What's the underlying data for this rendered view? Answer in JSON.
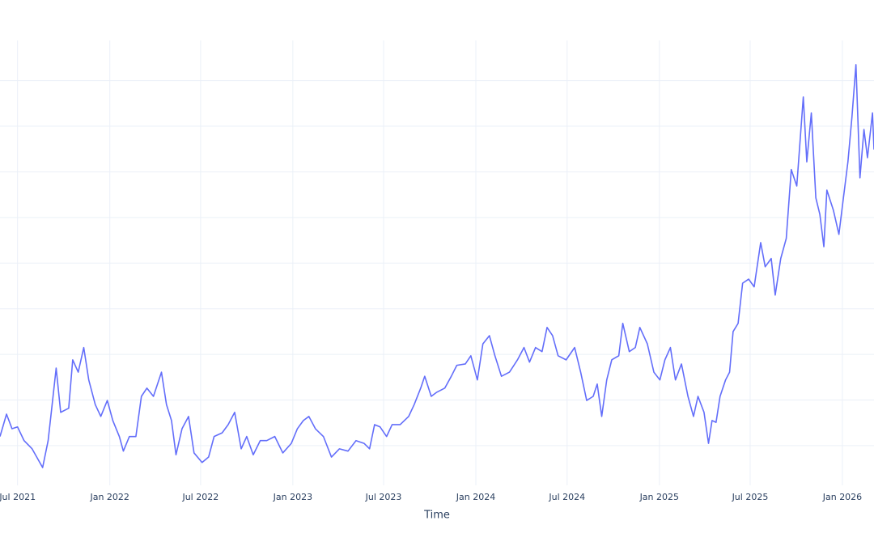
{
  "chart_data": {
    "type": "line",
    "x_label": "Time",
    "x": [
      "2021-05-27",
      "2021-06-09",
      "2021-06-20",
      "2021-07-01",
      "2021-07-14",
      "2021-07-30",
      "2021-08-20",
      "2021-08-31",
      "2021-09-08",
      "2021-09-16",
      "2021-09-25",
      "2021-10-11",
      "2021-10-19",
      "2021-10-30",
      "2021-11-10",
      "2021-11-20",
      "2021-12-03",
      "2021-12-14",
      "2021-12-27",
      "2022-01-07",
      "2022-01-20",
      "2022-01-28",
      "2022-02-09",
      "2022-02-22",
      "2022-03-05",
      "2022-03-16",
      "2022-03-29",
      "2022-04-14",
      "2022-04-24",
      "2022-05-04",
      "2022-05-13",
      "2022-05-25",
      "2022-06-07",
      "2022-06-18",
      "2022-07-04",
      "2022-07-17",
      "2022-07-28",
      "2022-08-13",
      "2022-08-25",
      "2022-09-07",
      "2022-09-20",
      "2022-10-01",
      "2022-10-14",
      "2022-10-28",
      "2022-11-10",
      "2022-11-26",
      "2022-12-12",
      "2022-12-29",
      "2023-01-10",
      "2023-01-22",
      "2023-02-02",
      "2023-02-15",
      "2023-03-03",
      "2023-03-19",
      "2023-04-04",
      "2023-04-21",
      "2023-05-07",
      "2023-05-23",
      "2023-06-03",
      "2023-06-13",
      "2023-06-24",
      "2023-07-07",
      "2023-07-18",
      "2023-08-03",
      "2023-08-20",
      "2023-08-31",
      "2023-09-13",
      "2023-09-21",
      "2023-10-04",
      "2023-10-15",
      "2023-10-31",
      "2023-11-13",
      "2023-11-24",
      "2023-12-11",
      "2023-12-22",
      "2024-01-04",
      "2024-01-15",
      "2024-01-28",
      "2024-02-08",
      "2024-02-21",
      "2024-03-08",
      "2024-03-24",
      "2024-04-06",
      "2024-04-17",
      "2024-04-29",
      "2024-05-12",
      "2024-05-22",
      "2024-06-02",
      "2024-06-13",
      "2024-06-29",
      "2024-07-16",
      "2024-07-28",
      "2024-08-09",
      "2024-08-22",
      "2024-08-30",
      "2024-09-08",
      "2024-09-18",
      "2024-09-28",
      "2024-10-12",
      "2024-10-20",
      "2024-11-02",
      "2024-11-14",
      "2024-11-23",
      "2024-12-08",
      "2024-12-21",
      "2025-01-02",
      "2025-01-12",
      "2025-01-23",
      "2025-02-02",
      "2025-02-14",
      "2025-02-27",
      "2025-03-10",
      "2025-03-19",
      "2025-03-31",
      "2025-04-09",
      "2025-04-16",
      "2025-04-24",
      "2025-05-02",
      "2025-05-13",
      "2025-05-21",
      "2025-05-28",
      "2025-06-07",
      "2025-06-16",
      "2025-06-28",
      "2025-07-09",
      "2025-07-22",
      "2025-07-31",
      "2025-08-12",
      "2025-08-20",
      "2025-08-31",
      "2025-09-11",
      "2025-09-21",
      "2025-10-02",
      "2025-10-15",
      "2025-10-22",
      "2025-10-31",
      "2025-11-09",
      "2025-11-17",
      "2025-11-25",
      "2025-12-01",
      "2025-12-14",
      "2025-12-25",
      "2026-01-02",
      "2026-01-12",
      "2026-01-20",
      "2026-01-28",
      "2026-02-05",
      "2026-02-13",
      "2026-02-20",
      "2026-03-02",
      "2026-03-05"
    ],
    "series": [
      {
        "color": "#636efa",
        "values": [
          1.2,
          1.69,
          1.37,
          1.41,
          1.11,
          0.93,
          0.52,
          1.11,
          1.9,
          2.7,
          1.73,
          1.82,
          2.88,
          2.61,
          3.15,
          2.44,
          1.9,
          1.64,
          1.99,
          1.55,
          1.2,
          0.88,
          1.2,
          1.2,
          2.08,
          2.26,
          2.08,
          2.61,
          1.9,
          1.55,
          0.8,
          1.37,
          1.64,
          0.84,
          0.63,
          0.75,
          1.2,
          1.28,
          1.46,
          1.73,
          0.93,
          1.2,
          0.8,
          1.11,
          1.11,
          1.2,
          0.84,
          1.05,
          1.37,
          1.55,
          1.64,
          1.37,
          1.2,
          0.75,
          0.93,
          0.88,
          1.11,
          1.05,
          0.93,
          1.46,
          1.41,
          1.2,
          1.46,
          1.46,
          1.64,
          1.9,
          2.26,
          2.52,
          2.08,
          2.17,
          2.26,
          2.52,
          2.76,
          2.79,
          2.97,
          2.44,
          3.23,
          3.41,
          2.97,
          2.52,
          2.61,
          2.88,
          3.15,
          2.83,
          3.15,
          3.06,
          3.59,
          3.41,
          2.97,
          2.88,
          3.15,
          2.61,
          1.99,
          2.08,
          2.35,
          1.64,
          2.44,
          2.88,
          2.97,
          3.68,
          3.06,
          3.15,
          3.59,
          3.23,
          2.61,
          2.44,
          2.88,
          3.15,
          2.44,
          2.79,
          2.08,
          1.64,
          2.08,
          1.73,
          1.05,
          1.55,
          1.51,
          2.08,
          2.44,
          2.61,
          3.5,
          3.68,
          4.56,
          4.65,
          4.48,
          5.45,
          4.92,
          5.1,
          4.3,
          5.1,
          5.54,
          7.05,
          6.69,
          8.64,
          7.22,
          8.29,
          6.43,
          6.07,
          5.36,
          6.6,
          6.16,
          5.63,
          6.34,
          7.22,
          8.2,
          9.35,
          6.87,
          7.93,
          7.31,
          8.29,
          7.49
        ]
      }
    ],
    "xlim": [
      "2021-05-27",
      "2026-03-05"
    ],
    "xticks": [
      {
        "value": "2021-07-01",
        "label": "Jul 2021"
      },
      {
        "value": "2022-01-01",
        "label": "Jan 2022"
      },
      {
        "value": "2022-07-01",
        "label": "Jul 2022"
      },
      {
        "value": "2023-01-01",
        "label": "Jan 2023"
      },
      {
        "value": "2023-07-01",
        "label": "Jul 2023"
      },
      {
        "value": "2024-01-01",
        "label": "Jan 2024"
      },
      {
        "value": "2024-07-01",
        "label": "Jul 2024"
      },
      {
        "value": "2025-01-01",
        "label": "Jan 2025"
      },
      {
        "value": "2025-07-01",
        "label": "Jul 2025"
      },
      {
        "value": "2026-01-01",
        "label": "Jan 2026"
      }
    ],
    "ylim": [
      0.13,
      9.88
    ],
    "ygrid": [
      1,
      2,
      3,
      4,
      5,
      6,
      7,
      8,
      9
    ],
    "grid": true
  }
}
